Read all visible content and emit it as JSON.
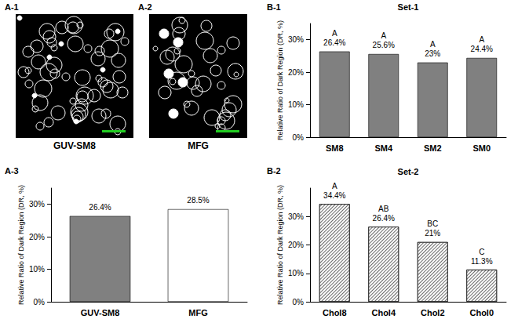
{
  "images": [
    {
      "panel": "A-1",
      "label": "GUV-SM8"
    },
    {
      "panel": "A-2",
      "label": "MFG"
    }
  ],
  "chart_data": [
    {
      "panel": "A-3",
      "type": "bar",
      "categories": [
        "GUV-SM8",
        "MFG"
      ],
      "values": [
        26.4,
        28.5
      ],
      "value_labels": [
        "26.4%",
        "28.5%"
      ],
      "colors": [
        "#808080",
        "#ffffff"
      ],
      "y_label": "Relative Ratio of Dark Region (DR, %)",
      "ylim": [
        0,
        35
      ],
      "yticks": [
        {
          "value": 0,
          "label": "0%"
        },
        {
          "value": 10,
          "label": "10%"
        },
        {
          "value": 20,
          "label": "20%"
        },
        {
          "value": 30,
          "label": "30%"
        }
      ],
      "grid": false,
      "data_labels": true
    },
    {
      "panel": "B-1",
      "title": "Set-1",
      "type": "bar",
      "categories": [
        "SM8",
        "SM4",
        "SM2",
        "SM0"
      ],
      "values": [
        26.4,
        25.6,
        23,
        24.4
      ],
      "value_labels": [
        "26.4%",
        "25.6%",
        "23%",
        "24.4%"
      ],
      "annotations": [
        "A",
        "A",
        "A",
        "A"
      ],
      "color": "#808080",
      "y_label": "Relative Ratio of Dark Region (DR, %)",
      "ylim": [
        0,
        35
      ],
      "yticks": [
        {
          "value": 0,
          "label": "0%"
        },
        {
          "value": 10,
          "label": "10%"
        },
        {
          "value": 20,
          "label": "20%"
        },
        {
          "value": 30,
          "label": "30%"
        }
      ],
      "grid": false,
      "data_labels": true
    },
    {
      "panel": "B-2",
      "title": "Set-2",
      "type": "bar",
      "categories": [
        "Chol8",
        "Chol4",
        "Chol2",
        "Chol0"
      ],
      "values": [
        34.4,
        26.4,
        21,
        11.3
      ],
      "value_labels": [
        "34.4%",
        "26.4%",
        "21%",
        "11.3%"
      ],
      "annotations": [
        "A",
        "AB",
        "BC",
        "C"
      ],
      "color": "#ffffff",
      "y_label": "Relative Ratio of Dark Region (DR, %)",
      "ylim": [
        0,
        40
      ],
      "yticks": [
        {
          "value": 0,
          "label": "0%"
        },
        {
          "value": 10,
          "label": "10%"
        },
        {
          "value": 20,
          "label": "20%"
        },
        {
          "value": 30,
          "label": "30%"
        }
      ],
      "grid": false,
      "data_labels": true
    }
  ]
}
